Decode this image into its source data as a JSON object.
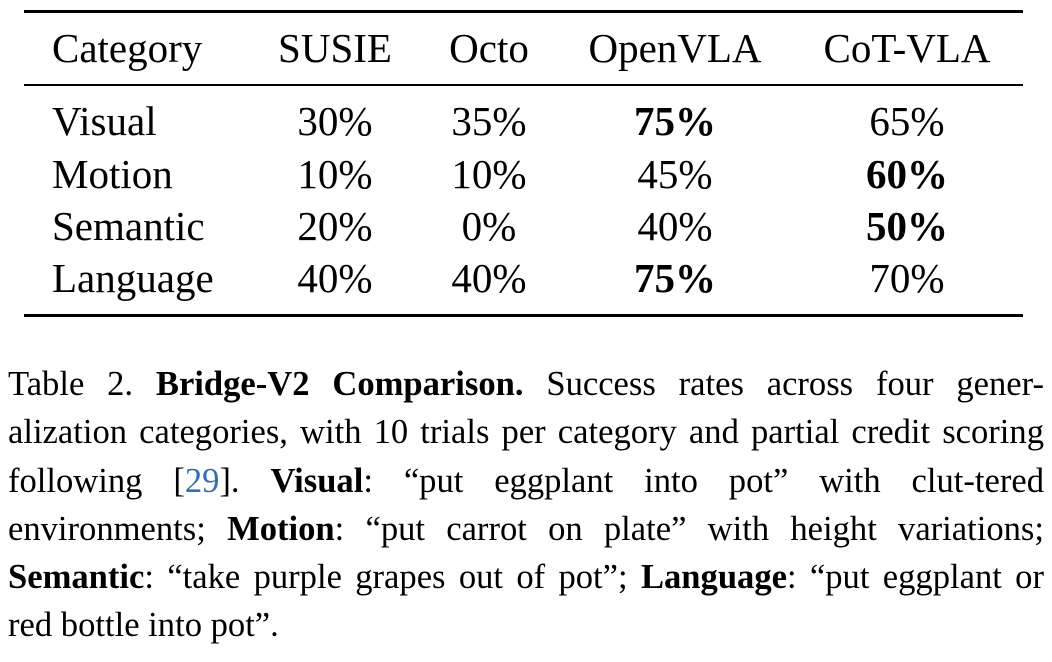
{
  "table": {
    "columns": [
      "Category",
      "SUSIE",
      "Octo",
      "OpenVLA",
      "CoT-VLA"
    ],
    "rows": [
      {
        "category": "Visual",
        "values": [
          "30%",
          "35%",
          "75%",
          "65%"
        ],
        "best_index": 2
      },
      {
        "category": "Motion",
        "values": [
          "10%",
          "10%",
          "45%",
          "60%"
        ],
        "best_index": 3
      },
      {
        "category": "Semantic",
        "values": [
          "20%",
          "0%",
          "40%",
          "50%"
        ],
        "best_index": 3
      },
      {
        "category": "Language",
        "values": [
          "40%",
          "40%",
          "75%",
          "70%"
        ],
        "best_index": 2
      }
    ]
  },
  "caption": {
    "label": "Table 2.",
    "title": "Bridge-V2 Comparison.",
    "text1": "Success rates across four gener-alization categories, with 10 trials per category and partial credit scoring following [",
    "cite": "29",
    "text2": "]. ",
    "visual_term": "Visual",
    "visual_desc": ": “put eggplant into pot” with clut-tered environments; ",
    "motion_term": "Motion",
    "motion_desc": ":  “put carrot on plate” with height variations; ",
    "semantic_term": "Semantic",
    "semantic_desc": ": “take purple grapes out of pot”; ",
    "language_term": "Language",
    "language_desc": ": “put eggplant or red bottle into pot”."
  }
}
